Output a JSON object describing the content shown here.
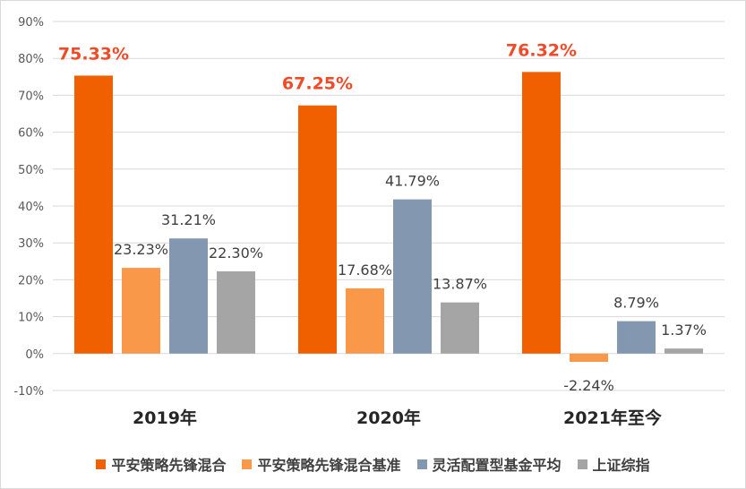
{
  "chart_data": {
    "type": "bar",
    "categories": [
      "2019年",
      "2020年",
      "2021年至今"
    ],
    "series": [
      {
        "name": "平安策略先锋混合",
        "values": [
          75.33,
          67.25,
          76.32
        ],
        "labels": [
          "75.33%",
          "67.25%",
          "76.32%"
        ],
        "color": "#f06000",
        "highlight": true,
        "label_color": "#f04a28"
      },
      {
        "name": "平安策略先锋混合基准",
        "values": [
          23.23,
          17.68,
          -2.24
        ],
        "labels": [
          "23.23%",
          "17.68%",
          "-2.24%"
        ],
        "color": "#f89848",
        "highlight": false
      },
      {
        "name": "灵活配置型基金平均",
        "values": [
          31.21,
          41.79,
          8.79
        ],
        "labels": [
          "31.21%",
          "41.79%",
          "8.79%"
        ],
        "color": "#8497b0",
        "highlight": false
      },
      {
        "name": "上证综指",
        "values": [
          22.3,
          13.87,
          1.37
        ],
        "labels": [
          "22.30%",
          "13.87%",
          "1.37%"
        ],
        "color": "#a5a5a5",
        "highlight": false
      }
    ],
    "ylim": [
      -10,
      90
    ],
    "yticks": [
      -10,
      0,
      10,
      20,
      30,
      40,
      50,
      60,
      70,
      80,
      90
    ],
    "ytick_labels": [
      "-10%",
      "0%",
      "10%",
      "20%",
      "30%",
      "40%",
      "50%",
      "60%",
      "70%",
      "80%",
      "90%"
    ],
    "grid": true,
    "legend_position": "bottom"
  }
}
